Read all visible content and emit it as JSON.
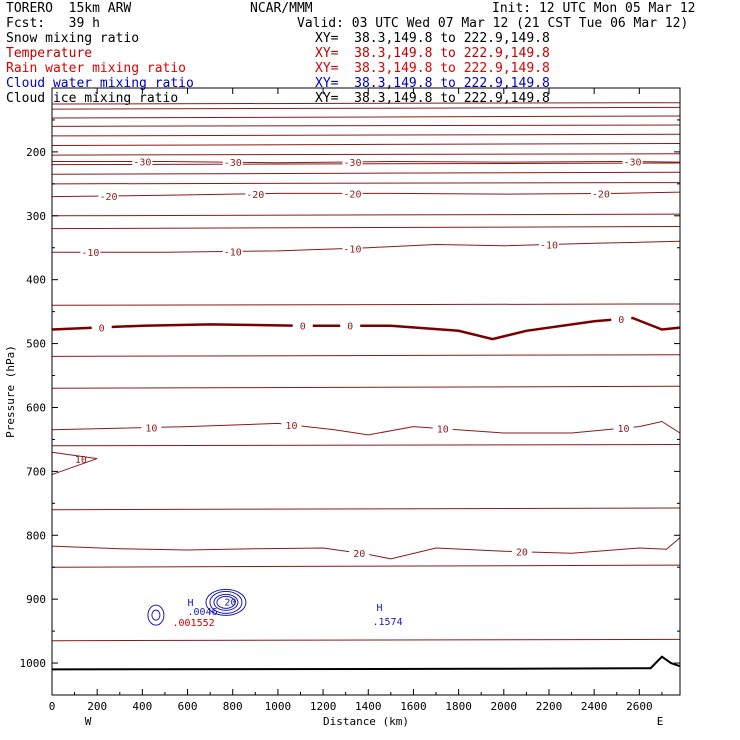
{
  "header": {
    "model": "TORERO  15km ARW",
    "center": "NCAR/MMM",
    "init": "Init: 12 UTC Mon 05 Mar 12",
    "fcst": "Fcst:   39 h",
    "valid": "Valid: 03 UTC Wed 07 Mar 12 (21 CST Tue 06 Mar 12)"
  },
  "fields": [
    {
      "name": "Snow mixing ratio",
      "xy": "XY=  38.3,149.8 to 222.9,149.8",
      "color": "#000000"
    },
    {
      "name": "Temperature",
      "xy": "XY=  38.3,149.8 to 222.9,149.8",
      "color": "#c00000"
    },
    {
      "name": "Rain water mixing ratio",
      "xy": "XY=  38.3,149.8 to 222.9,149.8",
      "color": "#e00000"
    },
    {
      "name": "Cloud water mixing ratio",
      "xy": "XY=  38.3,149.8 to 222.9,149.8",
      "color": "#0000c0"
    },
    {
      "name": "Cloud ice mixing ratio",
      "xy": "XY=  38.3,149.8 to 222.9,149.8",
      "color": "#000000"
    }
  ],
  "colors": {
    "temperature": "#8b1a1a",
    "freezing": "#7a0000",
    "cloud_water": "#1a1ab4",
    "rain": "#cc0000",
    "terrain": "#000000"
  },
  "chart_data": {
    "type": "line",
    "xlabel": "Distance (km)",
    "ylabel": "Pressure (hPa)",
    "xlim": [
      0,
      2780
    ],
    "ylim": [
      1050,
      100
    ],
    "x_ticks": [
      0,
      200,
      400,
      600,
      800,
      1000,
      1200,
      1400,
      1600,
      1800,
      2000,
      2200,
      2400,
      2600
    ],
    "y_ticks": [
      200,
      300,
      400,
      500,
      600,
      700,
      800,
      900,
      1000
    ],
    "west_label": "W",
    "east_label": "E",
    "isotherms": [
      {
        "label": "-30",
        "points": [
          [
            0,
            215
          ],
          [
            500,
            215
          ],
          [
            1000,
            217
          ],
          [
            1500,
            215
          ],
          [
            2000,
            216
          ],
          [
            2500,
            215
          ],
          [
            2780,
            216
          ]
        ],
        "label_x": [
          400,
          800,
          1330,
          2570
        ]
      },
      {
        "label": "-20",
        "points": [
          [
            0,
            270
          ],
          [
            500,
            268
          ],
          [
            1000,
            265
          ],
          [
            1500,
            265
          ],
          [
            2000,
            266
          ],
          [
            2500,
            265
          ],
          [
            2780,
            263
          ]
        ],
        "label_x": [
          250,
          900,
          1330,
          2430
        ]
      },
      {
        "label": "-10",
        "points": [
          [
            0,
            357
          ],
          [
            500,
            357
          ],
          [
            1000,
            355
          ],
          [
            1400,
            350
          ],
          [
            1700,
            345
          ],
          [
            2000,
            347
          ],
          [
            2400,
            343
          ],
          [
            2780,
            340
          ]
        ],
        "label_x": [
          170,
          800,
          1330,
          2200
        ]
      },
      {
        "label": "0",
        "points": [
          [
            0,
            478
          ],
          [
            400,
            472
          ],
          [
            700,
            470
          ],
          [
            1100,
            472
          ],
          [
            1500,
            472
          ],
          [
            1800,
            480
          ],
          [
            1950,
            493
          ],
          [
            2100,
            480
          ],
          [
            2400,
            465
          ],
          [
            2570,
            460
          ],
          [
            2700,
            478
          ],
          [
            2780,
            475
          ]
        ],
        "label_x": [
          220,
          1110,
          1320,
          2520
        ]
      },
      {
        "label": "10",
        "points": [
          [
            0,
            635
          ],
          [
            600,
            630
          ],
          [
            1000,
            625
          ],
          [
            1250,
            635
          ],
          [
            1400,
            643
          ],
          [
            1600,
            630
          ],
          [
            2000,
            640
          ],
          [
            2300,
            640
          ],
          [
            2600,
            630
          ],
          [
            2700,
            622
          ],
          [
            2780,
            640
          ]
        ],
        "label_x": [
          440,
          1060,
          1730,
          2530
        ]
      },
      {
        "label": "20",
        "points": [
          [
            0,
            817
          ],
          [
            300,
            821
          ],
          [
            600,
            823
          ],
          [
            900,
            821
          ],
          [
            1200,
            820
          ],
          [
            1400,
            830
          ],
          [
            1500,
            837
          ],
          [
            1700,
            820
          ],
          [
            2000,
            825
          ],
          [
            2300,
            828
          ],
          [
            2600,
            820
          ],
          [
            2720,
            822
          ],
          [
            2780,
            804
          ]
        ],
        "label_x": [
          1360,
          2080
        ]
      }
    ],
    "isotherm_extra_label": {
      "label": "10",
      "x": 150,
      "p": 690
    },
    "cloud_water_centers": [
      {
        "label": "H",
        "value": ".0046",
        "x": 640,
        "p": 920
      },
      {
        "label": "H",
        "value": ".1574",
        "x": 1450,
        "p": 925
      }
    ],
    "rain_center_value": ".001552",
    "contour_note": "20"
  }
}
